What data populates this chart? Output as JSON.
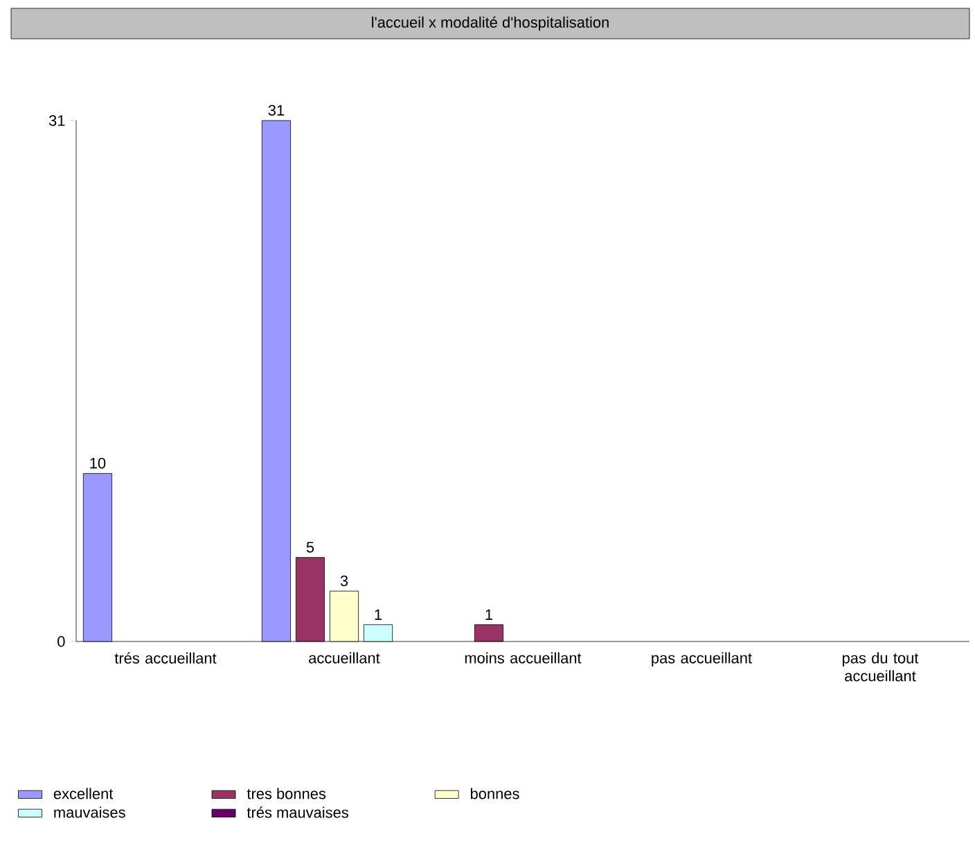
{
  "chart_data": {
    "type": "bar",
    "title": "l'accueil x modalité d'hospitalisation",
    "categories": [
      "trés accueillant",
      "accueillant",
      "moins accueillant",
      "pas accueillant",
      "pas du tout accueillant"
    ],
    "series": [
      {
        "name": "excellent",
        "color": "#9999ff",
        "values": [
          10,
          31,
          null,
          null,
          null
        ],
        "value_labels": [
          "10",
          "31",
          null,
          null,
          null
        ]
      },
      {
        "name": "tres bonnes",
        "color": "#993366",
        "values": [
          null,
          5,
          1,
          null,
          null
        ],
        "value_labels": [
          null,
          "5",
          "1",
          null,
          null
        ]
      },
      {
        "name": "bonnes",
        "color": "#ffffcc",
        "values": [
          null,
          3,
          null,
          null,
          null
        ],
        "value_labels": [
          null,
          "3",
          null,
          null,
          null
        ]
      },
      {
        "name": "mauvaises",
        "color": "#ccffff",
        "values": [
          null,
          1,
          null,
          null,
          null
        ],
        "value_labels": [
          null,
          "1",
          null,
          null,
          null
        ]
      },
      {
        "name": "trés mauvaises",
        "color": "#660066",
        "values": [
          null,
          null,
          null,
          null,
          null
        ],
        "value_labels": [
          null,
          null,
          null,
          null,
          null
        ]
      }
    ],
    "ylim": [
      0,
      31
    ],
    "yticks": [
      0,
      31
    ],
    "grid": false,
    "legend": "bottom"
  }
}
